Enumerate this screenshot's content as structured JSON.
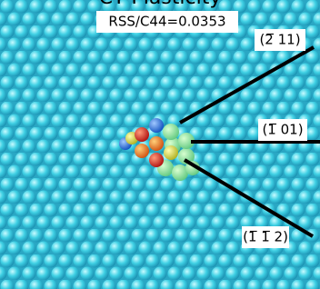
{
  "title": "CT Plasticity",
  "annotation": "RSS/C44=0.0353",
  "directions": [
    "(2̅ 11)",
    "(1̅ 01)",
    "(1̅ 1̅ 2)"
  ]
}
